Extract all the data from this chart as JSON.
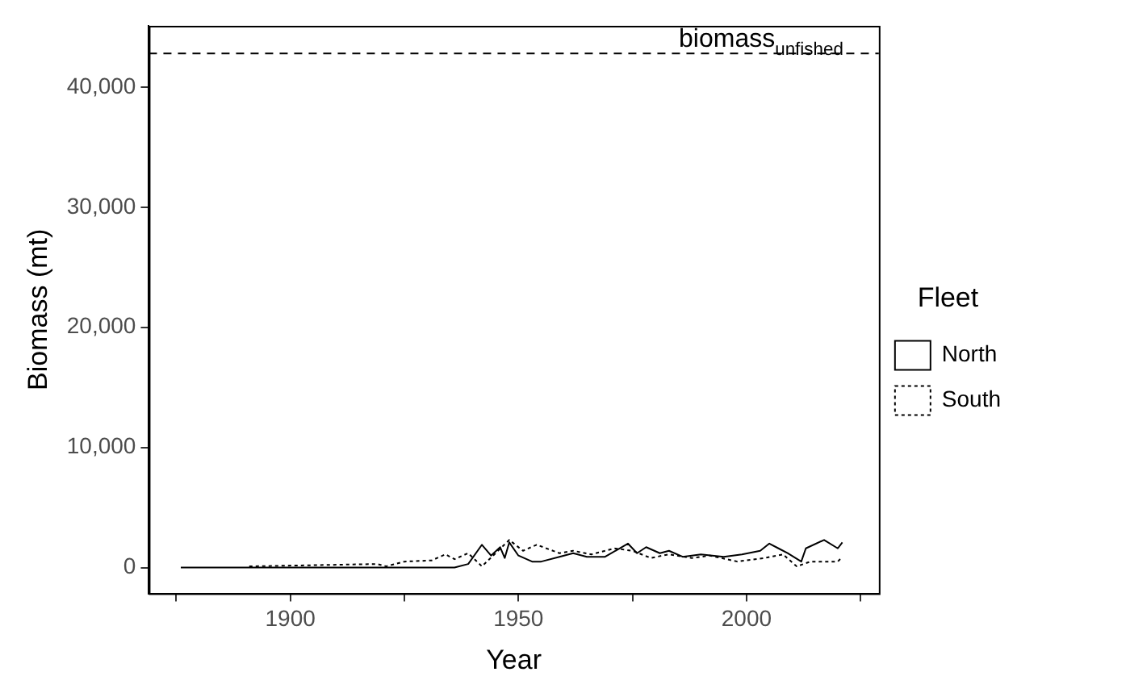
{
  "chart_data": {
    "type": "line",
    "xlabel": "Year",
    "ylabel": "Biomass (mt)",
    "legend_title": "Fleet",
    "legend": "right",
    "grid": false,
    "marker": "none",
    "xlim": [
      1869,
      2029
    ],
    "ylim": [
      -2150,
      45100
    ],
    "xticks": [
      {
        "value": 1875,
        "label": null
      },
      1900,
      {
        "value": 1925,
        "label": null
      },
      1950,
      {
        "value": 1975,
        "label": null
      },
      2000,
      {
        "value": 2025,
        "label": null
      }
    ],
    "yticks": [
      0,
      {
        "value": 10000,
        "label": "10,000"
      },
      {
        "value": 20000,
        "label": "20,000"
      },
      {
        "value": 30000,
        "label": "30,000"
      },
      {
        "value": 40000,
        "label": "40,000"
      }
    ],
    "ref_lines": [
      {
        "axis": "y",
        "value": 42800,
        "label": "biomass$_{unfished}$",
        "line_style": "dashed",
        "color": "#000000"
      }
    ],
    "series": [
      {
        "name": "North",
        "color": "#000000",
        "line_style": "solid",
        "x": [
          1876,
          1936,
          1939,
          1942,
          1944,
          1946,
          1947,
          1948,
          1950,
          1953,
          1955,
          1959,
          1962,
          1965,
          1969,
          1974,
          1976,
          1978,
          1981,
          1983,
          1986,
          1990,
          1995,
          1999,
          2003,
          2005,
          2007,
          2009,
          2012,
          2013,
          2017,
          2020,
          2021
        ],
        "values": [
          0,
          0,
          300,
          1900,
          1000,
          1700,
          800,
          2100,
          1000,
          500,
          500,
          900,
          1200,
          900,
          900,
          2000,
          1200,
          1700,
          1200,
          1400,
          900,
          1100,
          900,
          1100,
          1400,
          2000,
          1600,
          1200,
          500,
          1600,
          2300,
          1600,
          2100
        ]
      },
      {
        "name": "South",
        "color": "#000000",
        "line_style": "dotted",
        "x": [
          1891,
          1919,
          1921,
          1925,
          1931,
          1934,
          1936,
          1939,
          1942,
          1945,
          1948,
          1951,
          1954,
          1959,
          1962,
          1966,
          1971,
          1975,
          1979,
          1983,
          1988,
          1992,
          1998,
          2004,
          2008,
          2011,
          2014,
          2020,
          2021
        ],
        "values": [
          100,
          300,
          100,
          500,
          600,
          1100,
          700,
          1200,
          100,
          1200,
          2300,
          1400,
          1900,
          1200,
          1400,
          1100,
          1600,
          1400,
          800,
          1100,
          800,
          1000,
          500,
          800,
          1100,
          100,
          500,
          500,
          900
        ]
      }
    ]
  }
}
